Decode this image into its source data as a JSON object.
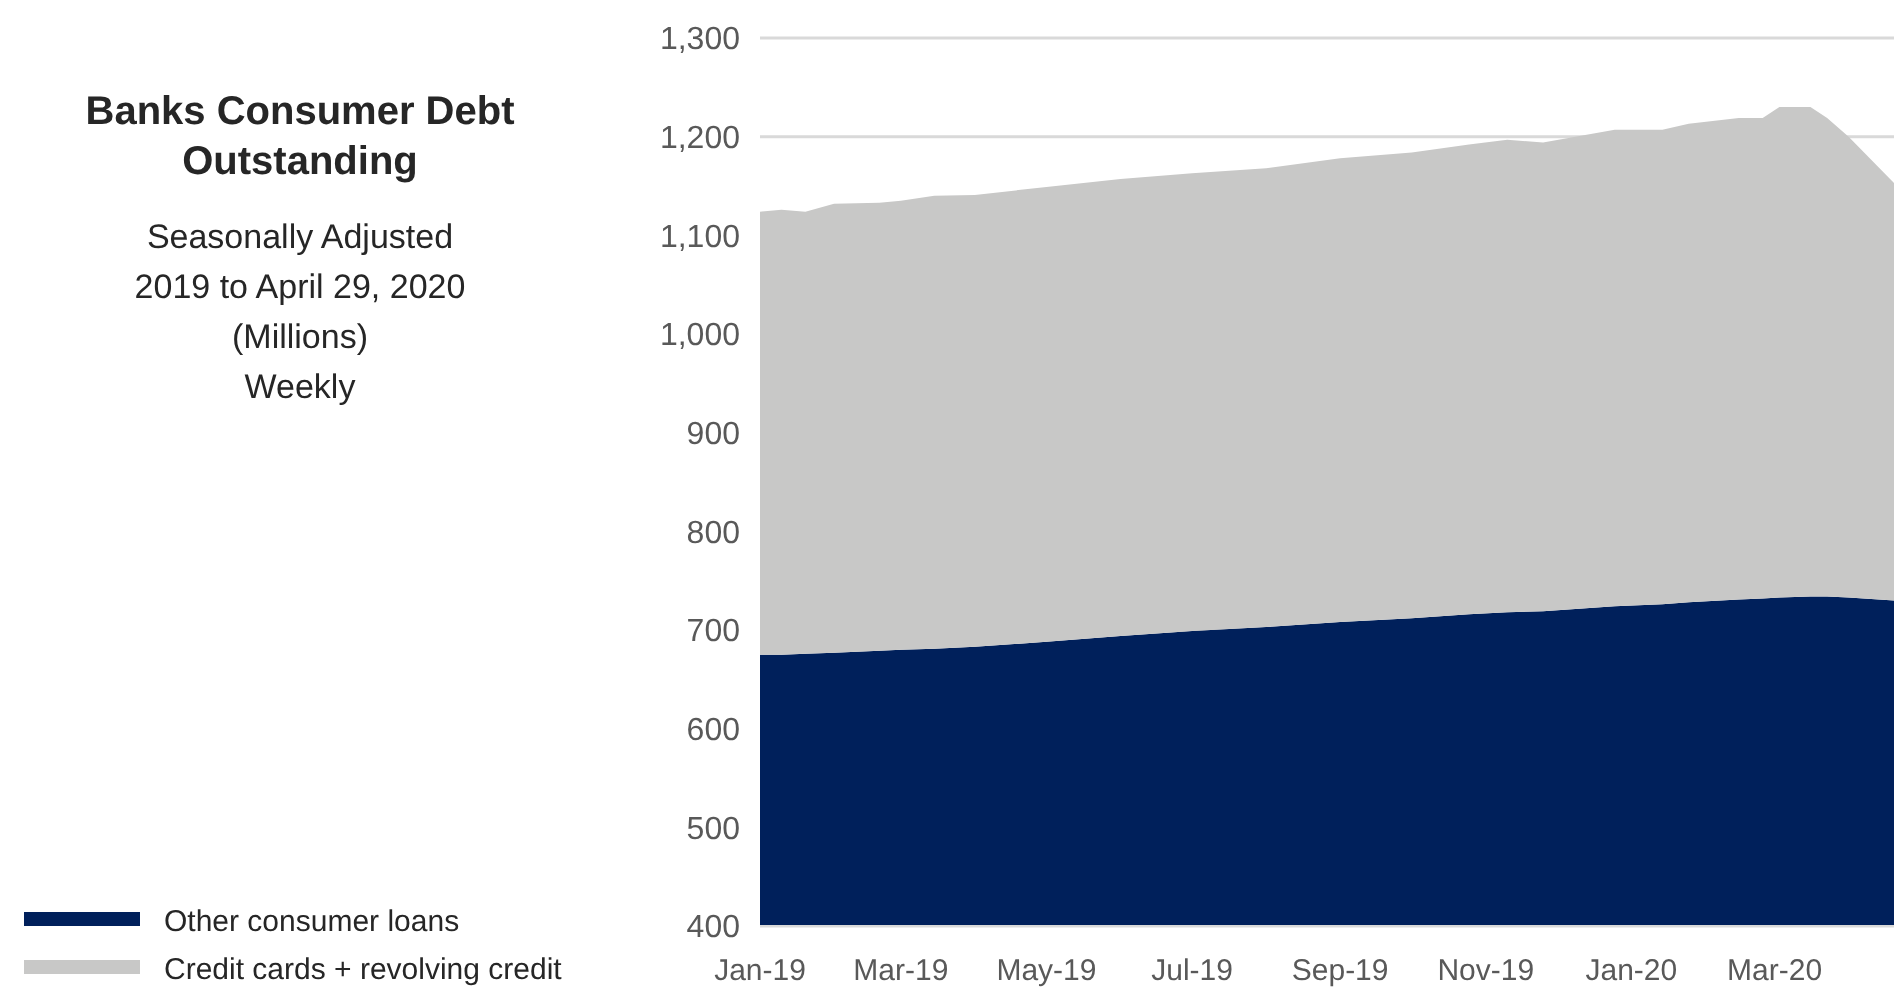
{
  "chart_data": {
    "type": "area",
    "stacked": true,
    "title": "Banks Consumer Debt Outstanding",
    "subtitle": "Seasonally Adjusted\n2019 to April 29, 2020\n(Millions)\nWeekly",
    "x": [
      "2019-01-01",
      "2019-01-10",
      "2019-01-20",
      "2019-02-01",
      "2019-02-20",
      "2019-03-01",
      "2019-03-15",
      "2019-04-01",
      "2019-05-01",
      "2019-06-01",
      "2019-07-01",
      "2019-08-01",
      "2019-09-01",
      "2019-10-01",
      "2019-10-25",
      "2019-11-10",
      "2019-11-25",
      "2019-12-25",
      "2020-01-14",
      "2020-01-25",
      "2020-02-15",
      "2020-02-25",
      "2020-03-03",
      "2020-03-16",
      "2020-03-23",
      "2020-04-01",
      "2020-04-20"
    ],
    "series": [
      {
        "name": "Other consumer loans",
        "color": "#00205b",
        "values": [
          675,
          675,
          676,
          677,
          679,
          680,
          681,
          683,
          688,
          694,
          699,
          703,
          708,
          712,
          716,
          718,
          719,
          724,
          726,
          728,
          731,
          732,
          733,
          734,
          734,
          733,
          730
        ]
      },
      {
        "name": "Credit cards + revolving credit",
        "color": "#c8c8c7",
        "values": [
          449,
          451,
          448,
          455,
          454,
          455,
          459,
          458,
          461,
          463,
          464,
          465,
          470,
          472,
          476,
          479,
          475,
          483,
          481,
          485,
          488,
          487,
          497,
          496,
          485,
          467,
          423
        ]
      }
    ],
    "xlim": [
      "2019-01-01",
      "2020-04-20"
    ],
    "xticks": [
      {
        "value": "2019-01-01",
        "label": "Jan-19"
      },
      {
        "value": "2019-03-01",
        "label": "Mar-19"
      },
      {
        "value": "2019-05-01",
        "label": "May-19"
      },
      {
        "value": "2019-07-01",
        "label": "Jul-19"
      },
      {
        "value": "2019-09-01",
        "label": "Sep-19"
      },
      {
        "value": "2019-11-01",
        "label": "Nov-19"
      },
      {
        "value": "2020-01-01",
        "label": "Jan-20"
      },
      {
        "value": "2020-03-01",
        "label": "Mar-20"
      }
    ],
    "ylim": [
      400,
      1300
    ],
    "yticks": [
      {
        "value": 400,
        "label": "400"
      },
      {
        "value": 500,
        "label": "500"
      },
      {
        "value": 600,
        "label": "600"
      },
      {
        "value": 700,
        "label": "700"
      },
      {
        "value": 800,
        "label": "800"
      },
      {
        "value": 900,
        "label": "900"
      },
      {
        "value": 1000,
        "label": "1,000"
      },
      {
        "value": 1100,
        "label": "1,100"
      },
      {
        "value": 1200,
        "label": "1,200"
      },
      {
        "value": 1300,
        "label": "1,300"
      }
    ],
    "grid": "y",
    "legend": "bottom left"
  }
}
